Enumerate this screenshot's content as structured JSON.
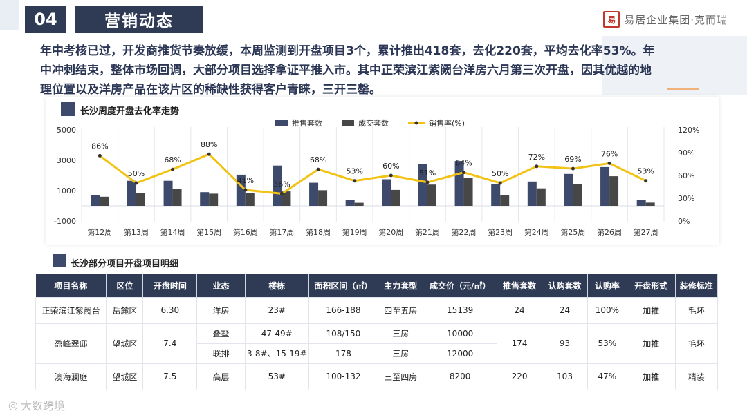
{
  "header": {
    "section_number": "04",
    "section_title": "营销动态",
    "logo_mark": "易",
    "logo_text": "易居企业集团·克而瑞"
  },
  "intro": {
    "line1": "年中考核已过，开发商推货节奏放缓，本周监测到开盘项目3个，累计推出418套，去化220套，平均去化率53%。年",
    "line2": "中冲刺结束，整体市场回调，大部分项目选择拿证平推入市。其中正荣滨江紫阙台洋房六月第三次开盘，因其优越的地",
    "line3": "理位置以及洋房产品在该片区的稀缺性获得客户青睐，三开三罄。"
  },
  "chart_data": {
    "type": "bar",
    "title": "长沙周度开盘去化率走势",
    "categories": [
      "第12周",
      "第13周",
      "第14周",
      "第15周",
      "第16周",
      "第17周",
      "第18周",
      "第19周",
      "第20周",
      "第21周",
      "第22周",
      "第23周",
      "第24周",
      "第25周",
      "第26周",
      "第27周"
    ],
    "series": [
      {
        "name": "推售套数",
        "type": "bar",
        "axis": "left",
        "color": "#3d4a6b",
        "values": [
          700,
          1650,
          1650,
          900,
          2050,
          2650,
          1520,
          380,
          1750,
          2750,
          2950,
          1450,
          1600,
          2100,
          2550,
          400
        ]
      },
      {
        "name": "成交套数",
        "type": "bar",
        "axis": "left",
        "color": "#474747",
        "values": [
          600,
          820,
          1120,
          800,
          840,
          950,
          1030,
          200,
          1050,
          1400,
          1850,
          720,
          1150,
          1450,
          1950,
          210
        ]
      },
      {
        "name": "销售率(%)",
        "type": "line",
        "axis": "right",
        "color": "#f2c314",
        "values": [
          86,
          50,
          68,
          88,
          41,
          36,
          68,
          53,
          60,
          51,
          64,
          50,
          72,
          69,
          76,
          53
        ]
      }
    ],
    "data_labels": [
      "86%",
      "50%",
      "68%",
      "88%",
      "41%",
      "36%",
      "68%",
      "53%",
      "60%",
      "51%",
      "64%",
      "50%",
      "72%",
      "69%",
      "76%",
      "53%"
    ],
    "y_left": {
      "ticks": [
        "5000",
        "3000",
        "1000",
        "-1000"
      ],
      "min": -1000,
      "max": 5000
    },
    "y_right": {
      "ticks": [
        "120%",
        "90%",
        "60%",
        "30%",
        "0%"
      ],
      "min": 0,
      "max": 120
    },
    "legend_position": "top"
  },
  "table": {
    "title": "长沙部分项目开盘项目明细",
    "headers": [
      "项目名称",
      "区位",
      "开盘时间",
      "业态",
      "楼栋",
      "面积区间（㎡）",
      "主力套型",
      "成交价（元/㎡）",
      "推售套数",
      "认购套数",
      "认购率",
      "开盘形式",
      "装修标准"
    ],
    "r1": {
      "name": "正荣滨江紫阙台",
      "district": "岳麓区",
      "date": "6.30",
      "type": "洋房",
      "building": "23#",
      "area": "166-188",
      "layout": "四至五房",
      "price": "15139",
      "supply": "24",
      "sold": "24",
      "rate": "100%",
      "form": "加推",
      "finish": "毛坯"
    },
    "r2": {
      "name": "盈峰翠邸",
      "district": "望城区",
      "date": "7.4",
      "type_a": "叠墅",
      "building_a": "47-49#",
      "area_a": "108/150",
      "layout_a": "三房",
      "price_a": "10000",
      "type_b": "联排",
      "building_b": "3-8#、15-19#",
      "area_b": "178",
      "layout_b": "三房",
      "price_b": "12000",
      "supply": "174",
      "sold": "93",
      "rate": "53%",
      "form": "加推",
      "finish": "毛坯"
    },
    "r3": {
      "name": "澳海澜庭",
      "district": "望城区",
      "date": "7.5",
      "type": "高层",
      "building": "53#",
      "area": "100-132",
      "layout": "三至四房",
      "price": "8200",
      "supply": "220",
      "sold": "103",
      "rate": "47%",
      "form": "加推",
      "finish": "精装"
    }
  },
  "watermark": "大数跨境"
}
